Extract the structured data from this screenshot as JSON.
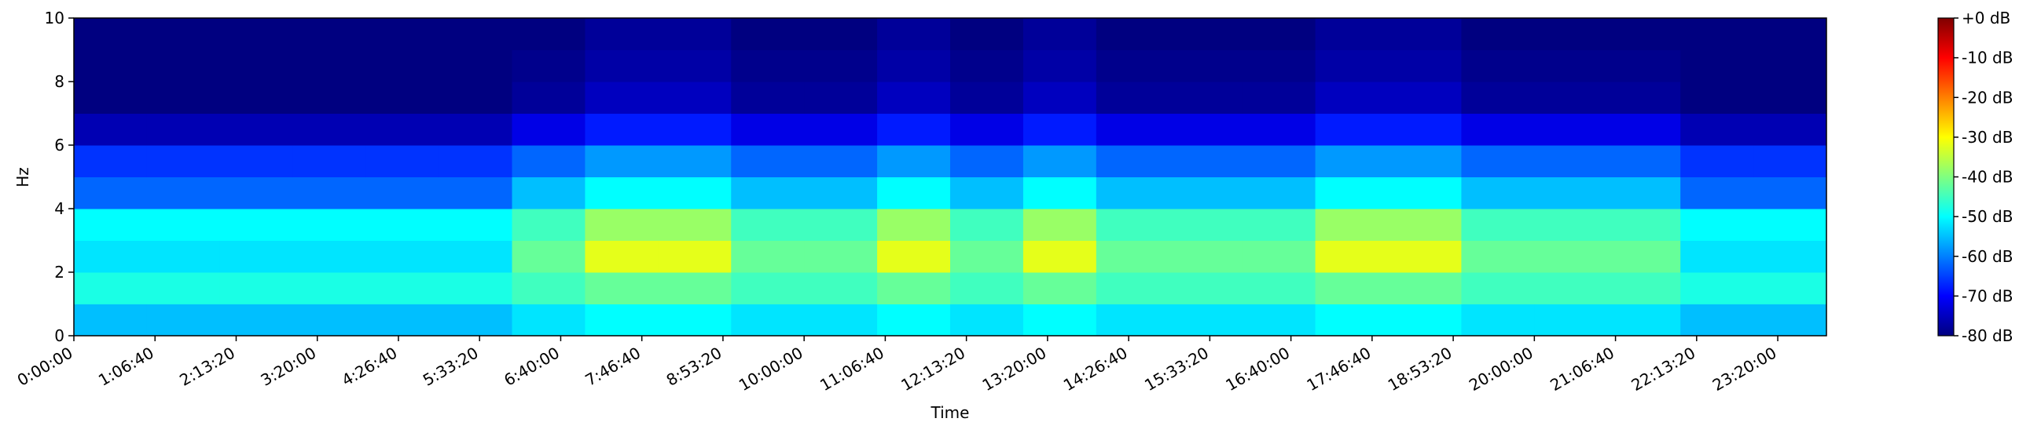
{
  "chart_data": {
    "type": "heatmap",
    "xlabel": "Time",
    "ylabel": "Hz",
    "colormap": "jet",
    "xlim": [
      0,
      86400
    ],
    "ylim": [
      0,
      10
    ],
    "clim": [
      -80,
      0
    ],
    "x_bins": [
      0,
      3600,
      7200,
      10800,
      14400,
      18000,
      21600,
      25200,
      28800,
      32400,
      36000,
      39600,
      43200,
      46800,
      50400,
      54000,
      57600,
      61200,
      64800,
      68400,
      72000,
      75600,
      79200,
      82800,
      86400
    ],
    "y_bins": [
      0,
      1,
      2,
      3,
      4,
      5,
      6,
      7,
      8,
      9,
      10
    ],
    "z": [
      [
        -55,
        -55,
        -55,
        -55,
        -55,
        -55,
        -52,
        -50,
        -50,
        -52,
        -52,
        -50,
        -52,
        -50,
        -52,
        -52,
        -52,
        -50,
        -50,
        -52,
        -52,
        -52,
        -55,
        -55
      ],
      [
        -48,
        -48,
        -48,
        -48,
        -48,
        -48,
        -45,
        -42,
        -42,
        -45,
        -45,
        -42,
        -45,
        -42,
        -45,
        -45,
        -45,
        -42,
        -42,
        -45,
        -45,
        -45,
        -48,
        -48
      ],
      [
        -52,
        -52,
        -52,
        -52,
        -52,
        -52,
        -42,
        -32,
        -32,
        -42,
        -42,
        -32,
        -42,
        -32,
        -42,
        -42,
        -42,
        -32,
        -32,
        -42,
        -42,
        -42,
        -52,
        -52
      ],
      [
        -50,
        -50,
        -50,
        -50,
        -50,
        -50,
        -45,
        -38,
        -38,
        -45,
        -45,
        -38,
        -45,
        -38,
        -45,
        -45,
        -45,
        -38,
        -38,
        -45,
        -45,
        -45,
        -50,
        -50
      ],
      [
        -62,
        -62,
        -62,
        -62,
        -62,
        -62,
        -55,
        -50,
        -50,
        -55,
        -55,
        -50,
        -55,
        -50,
        -55,
        -55,
        -55,
        -50,
        -50,
        -55,
        -55,
        -55,
        -62,
        -62
      ],
      [
        -66,
        -66,
        -66,
        -66,
        -66,
        -66,
        -62,
        -58,
        -58,
        -62,
        -62,
        -58,
        -62,
        -58,
        -62,
        -62,
        -62,
        -58,
        -58,
        -62,
        -62,
        -62,
        -66,
        -66
      ],
      [
        -76,
        -76,
        -76,
        -76,
        -76,
        -76,
        -72,
        -68,
        -68,
        -72,
        -72,
        -68,
        -72,
        -68,
        -72,
        -72,
        -72,
        -68,
        -68,
        -72,
        -72,
        -72,
        -76,
        -76
      ],
      [
        -80,
        -80,
        -80,
        -80,
        -80,
        -80,
        -78,
        -75,
        -75,
        -78,
        -78,
        -75,
        -78,
        -75,
        -78,
        -78,
        -78,
        -75,
        -75,
        -78,
        -78,
        -78,
        -80,
        -80
      ],
      [
        -80,
        -80,
        -80,
        -80,
        -80,
        -80,
        -79,
        -77,
        -77,
        -79,
        -79,
        -77,
        -79,
        -77,
        -79,
        -79,
        -79,
        -77,
        -77,
        -79,
        -79,
        -79,
        -80,
        -80
      ],
      [
        -80,
        -80,
        -80,
        -80,
        -80,
        -80,
        -80,
        -78,
        -78,
        -80,
        -80,
        -78,
        -80,
        -78,
        -80,
        -80,
        -80,
        -78,
        -78,
        -80,
        -80,
        -80,
        -80,
        -80
      ]
    ],
    "xticks": [
      {
        "value": 0,
        "label": "0:00:00"
      },
      {
        "value": 4000,
        "label": "1:06:40"
      },
      {
        "value": 8000,
        "label": "2:13:20"
      },
      {
        "value": 12000,
        "label": "3:20:00"
      },
      {
        "value": 16000,
        "label": "4:26:40"
      },
      {
        "value": 20000,
        "label": "5:33:20"
      },
      {
        "value": 24000,
        "label": "6:40:00"
      },
      {
        "value": 28000,
        "label": "7:46:40"
      },
      {
        "value": 32000,
        "label": "8:53:20"
      },
      {
        "value": 36000,
        "label": "10:00:00"
      },
      {
        "value": 40000,
        "label": "11:06:40"
      },
      {
        "value": 44000,
        "label": "12:13:20"
      },
      {
        "value": 48000,
        "label": "13:20:00"
      },
      {
        "value": 52000,
        "label": "14:26:40"
      },
      {
        "value": 56000,
        "label": "15:33:20"
      },
      {
        "value": 60000,
        "label": "16:40:00"
      },
      {
        "value": 64000,
        "label": "17:46:40"
      },
      {
        "value": 68000,
        "label": "18:53:20"
      },
      {
        "value": 72000,
        "label": "20:00:00"
      },
      {
        "value": 76000,
        "label": "21:06:40"
      },
      {
        "value": 80000,
        "label": "22:13:20"
      },
      {
        "value": 84000,
        "label": "23:20:00"
      }
    ],
    "yticks": [
      0,
      2,
      4,
      6,
      8,
      10
    ],
    "cticks": [
      {
        "value": 0,
        "label": "+0 dB"
      },
      {
        "value": -10,
        "label": "-10 dB"
      },
      {
        "value": -20,
        "label": "-20 dB"
      },
      {
        "value": -30,
        "label": "-30 dB"
      },
      {
        "value": -40,
        "label": "-40 dB"
      },
      {
        "value": -50,
        "label": "-50 dB"
      },
      {
        "value": -60,
        "label": "-60 dB"
      },
      {
        "value": -70,
        "label": "-70 dB"
      },
      {
        "value": -80,
        "label": "-80 dB"
      }
    ]
  }
}
